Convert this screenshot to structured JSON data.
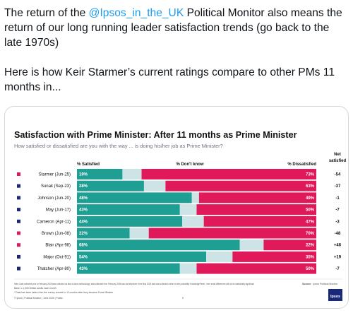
{
  "tweet": {
    "text_before": "The return of the ",
    "mention": "@Ipsos_in_the_UK",
    "text_after": " Political Monitor also means the return of our long running leader satisfaction trends (go back to the late 1970s)",
    "paragraph2": "Here is how Keir Starmer’s current ratings compare to other PMs 11 months in..."
  },
  "colors": {
    "satisfied": "#1f9e93",
    "dont_know": "#cde3e6",
    "dissatisfied": "#e0195b",
    "brand_blue": "#19287a",
    "mention": "#1d9bf0"
  },
  "chart_data": {
    "type": "bar",
    "orientation": "horizontal",
    "stacked": true,
    "title": "Satisfaction with Prime Minister: After 11 months as Prime Minister",
    "subtitle": "How satisfied or dissatisfied are you with the way ... is doing his/her job as Prime Minister?",
    "headers": {
      "satisfied": "% Satisfied",
      "dont_know": "% Don't know",
      "dissatisfied": "% Dissatisfied",
      "net_line1": "Net",
      "net_line2": "satisfied"
    },
    "categories": [
      "Starmer (Jun-25)",
      "Sunak (Sep-23)",
      "Johnson (Jun-20)",
      "May (Jun-17)",
      "Cameron (Apr-11)",
      "Brown (Jun-08)",
      "Blair (Apr-98)",
      "Major (Oct-91)",
      "Thatcher (Apr-80)"
    ],
    "marker_colors": [
      "#e0195b",
      "#19287a",
      "#19287a",
      "#19287a",
      "#19287a",
      "#e0195b",
      "#e0195b",
      "#19287a",
      "#19287a"
    ],
    "series": [
      {
        "name": "% Satisfied",
        "values": [
          19,
          28,
          48,
          43,
          44,
          22,
          68,
          54,
          43
        ]
      },
      {
        "name": "% Don't know",
        "values": [
          8,
          9,
          3,
          7,
          9,
          8,
          10,
          11,
          7
        ]
      },
      {
        "name": "% Dissatisfied",
        "values": [
          73,
          63,
          49,
          50,
          47,
          70,
          22,
          35,
          50
        ]
      }
    ],
    "satisfied_labels": [
      "19%",
      "28%",
      "48%",
      "43%",
      "44%",
      "22%",
      "68%",
      "54%",
      "43%"
    ],
    "dissatisfied_labels": [
      "73%",
      "63%",
      "49%",
      "50%",
      "47%",
      "70%",
      "22%",
      "35%",
      "50%"
    ],
    "net_labels": [
      "-54",
      "-37",
      "-1",
      "-7",
      "-3",
      "-48",
      "+46",
      "+19",
      "-7"
    ],
    "xlim": [
      0,
      100
    ]
  },
  "footer": {
    "note1": "Note: Data collected prior to February 2008 was collected via face-to-face methodology; data collected from February 2008 was via telephone; from May 2025 data was collected online via the probability KnowledgePanel - here small differences will not be statistically significant",
    "note2": "Base: c.1,000 British adults each month",
    "note3": "* Data has been taken from the survey closest to 11 months after they became Prime Minister",
    "copyright": "© Ipsos | Political Monitor | June 2025 | Public",
    "page": "9",
    "source_label": "Source:",
    "source_value": "Ipsos Political Monitor",
    "logo": "Ipsos"
  }
}
